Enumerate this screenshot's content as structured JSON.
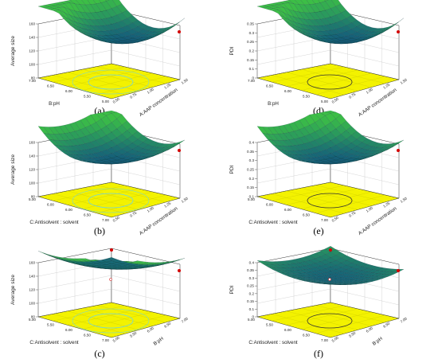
{
  "chart_data": [
    {
      "type": "surface",
      "panel": "(a)",
      "zlabel": "Average size",
      "xlabel": "A:AAP concentration",
      "ylabel": "B:pH",
      "zticks": [
        "80",
        "100",
        "120",
        "140",
        "160"
      ],
      "xticks": [
        "0.50",
        "0.75",
        "1.00",
        "1.25",
        "1.50"
      ],
      "yticks": [
        "7.00",
        "6.50",
        "6.00",
        "5.50",
        "5.00"
      ],
      "contour": "#6fd3df"
    },
    {
      "type": "surface",
      "panel": "(d)",
      "zlabel": "PDI",
      "xlabel": "A:AAP concentration",
      "ylabel": "B:pH",
      "zticks": [
        "0",
        "0.1",
        "0.15",
        "0.2",
        "0.25",
        "0.3",
        "0.35"
      ],
      "xticks": [
        "0.50",
        "0.75",
        "1.00",
        "1.25",
        "1.50"
      ],
      "yticks": [
        "7.00",
        "6.50",
        "6.00",
        "5.50",
        "5.00"
      ],
      "contour": "#333333"
    },
    {
      "type": "surface",
      "panel": "(b)",
      "zlabel": "Average size",
      "xlabel": "A:AAP concentration",
      "ylabel": "C:Antisolvent : solvent",
      "zticks": [
        "80",
        "100",
        "120",
        "140",
        "160"
      ],
      "xticks": [
        "0.50",
        "0.75",
        "1.00",
        "1.25",
        "1.50"
      ],
      "yticks": [
        "5.00",
        "6.00",
        "6.00",
        "6.50",
        "7.00"
      ],
      "contour": "#6fd3df"
    },
    {
      "type": "surface",
      "panel": "(e)",
      "zlabel": "PDI",
      "xlabel": "A:AAP concentration",
      "ylabel": "C:Antisolvent : solvent",
      "zticks": [
        "0.1",
        "0.15",
        "0.2",
        "0.25",
        "0.3",
        "0.35",
        "0.4"
      ],
      "xticks": [
        "0.50",
        "0.75",
        "1.00",
        "1.25",
        "1.50"
      ],
      "yticks": [
        "5.00",
        "6.00",
        "6.00",
        "6.50",
        "7.00"
      ],
      "contour": "#333333"
    },
    {
      "type": "surface",
      "panel": "(c)",
      "zlabel": "Average size",
      "xlabel": "B:pH",
      "ylabel": "C:Antisolvent : solvent",
      "zticks": [
        "80",
        "100",
        "120",
        "140",
        "160"
      ],
      "xticks": [
        "5.00",
        "5.50",
        "6.00",
        "6.50",
        "7.00"
      ],
      "yticks": [
        "5.00",
        "5.50",
        "6.00",
        "6.50",
        "7.00"
      ],
      "contour": "#6fd3df"
    },
    {
      "type": "surface",
      "panel": "(f)",
      "zlabel": "PDI",
      "xlabel": "B:pH",
      "ylabel": "C:Antisolvent : solvent",
      "zticks": [
        "0",
        "0.1",
        "0.15",
        "0.2",
        "0.25",
        "0.3",
        "0.35",
        "0.4"
      ],
      "xticks": [
        "5.00",
        "5.50",
        "6.00",
        "6.50",
        "7.00"
      ],
      "yticks": [
        "5.00",
        "5.50",
        "6.00",
        "6.50",
        "7.00"
      ],
      "contour": "#333333"
    }
  ]
}
